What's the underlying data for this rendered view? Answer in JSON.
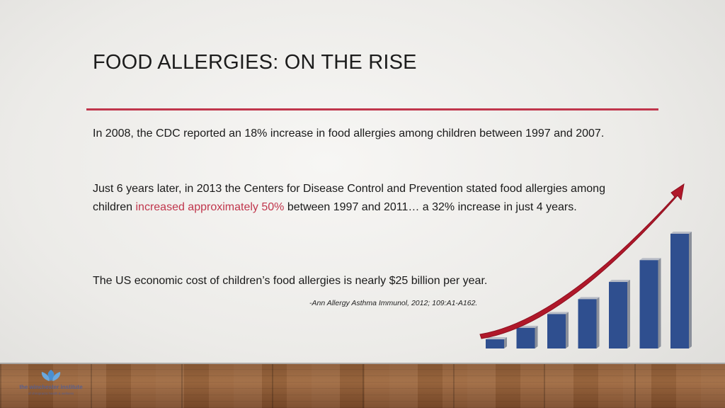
{
  "slide": {
    "title": "FOOD ALLERGIES: ON THE RISE",
    "para1": "In 2008, the CDC reported an 18% increase in food allergies among children between 1997 and 2007.",
    "para2_pre": "Just 6 years later, in 2013 the Centers for Disease Control and Prevention stated food allergies among children ",
    "para2_highlight": "increased approximately 50%",
    "para2_post": " between 1997 and 2011… a 32% increase in just 4 years.",
    "para3": "The US economic cost of children’s food allergies is nearly $25 billion per year.",
    "citation": "-Ann Allergy Asthma Immunol, 2012; 109:A1-A162."
  },
  "logo": {
    "name": "the winchester institute",
    "tagline": "of chiropractic health & wellness"
  },
  "graphic": {
    "bar_levels": [
      0.08,
      0.18,
      0.3,
      0.43,
      0.58,
      0.77,
      1.0
    ],
    "bar_color": "#2f4f8f",
    "arrow_color": "#b0182a"
  },
  "colors": {
    "accent": "#c0364c",
    "floor": "#8b5a35"
  }
}
